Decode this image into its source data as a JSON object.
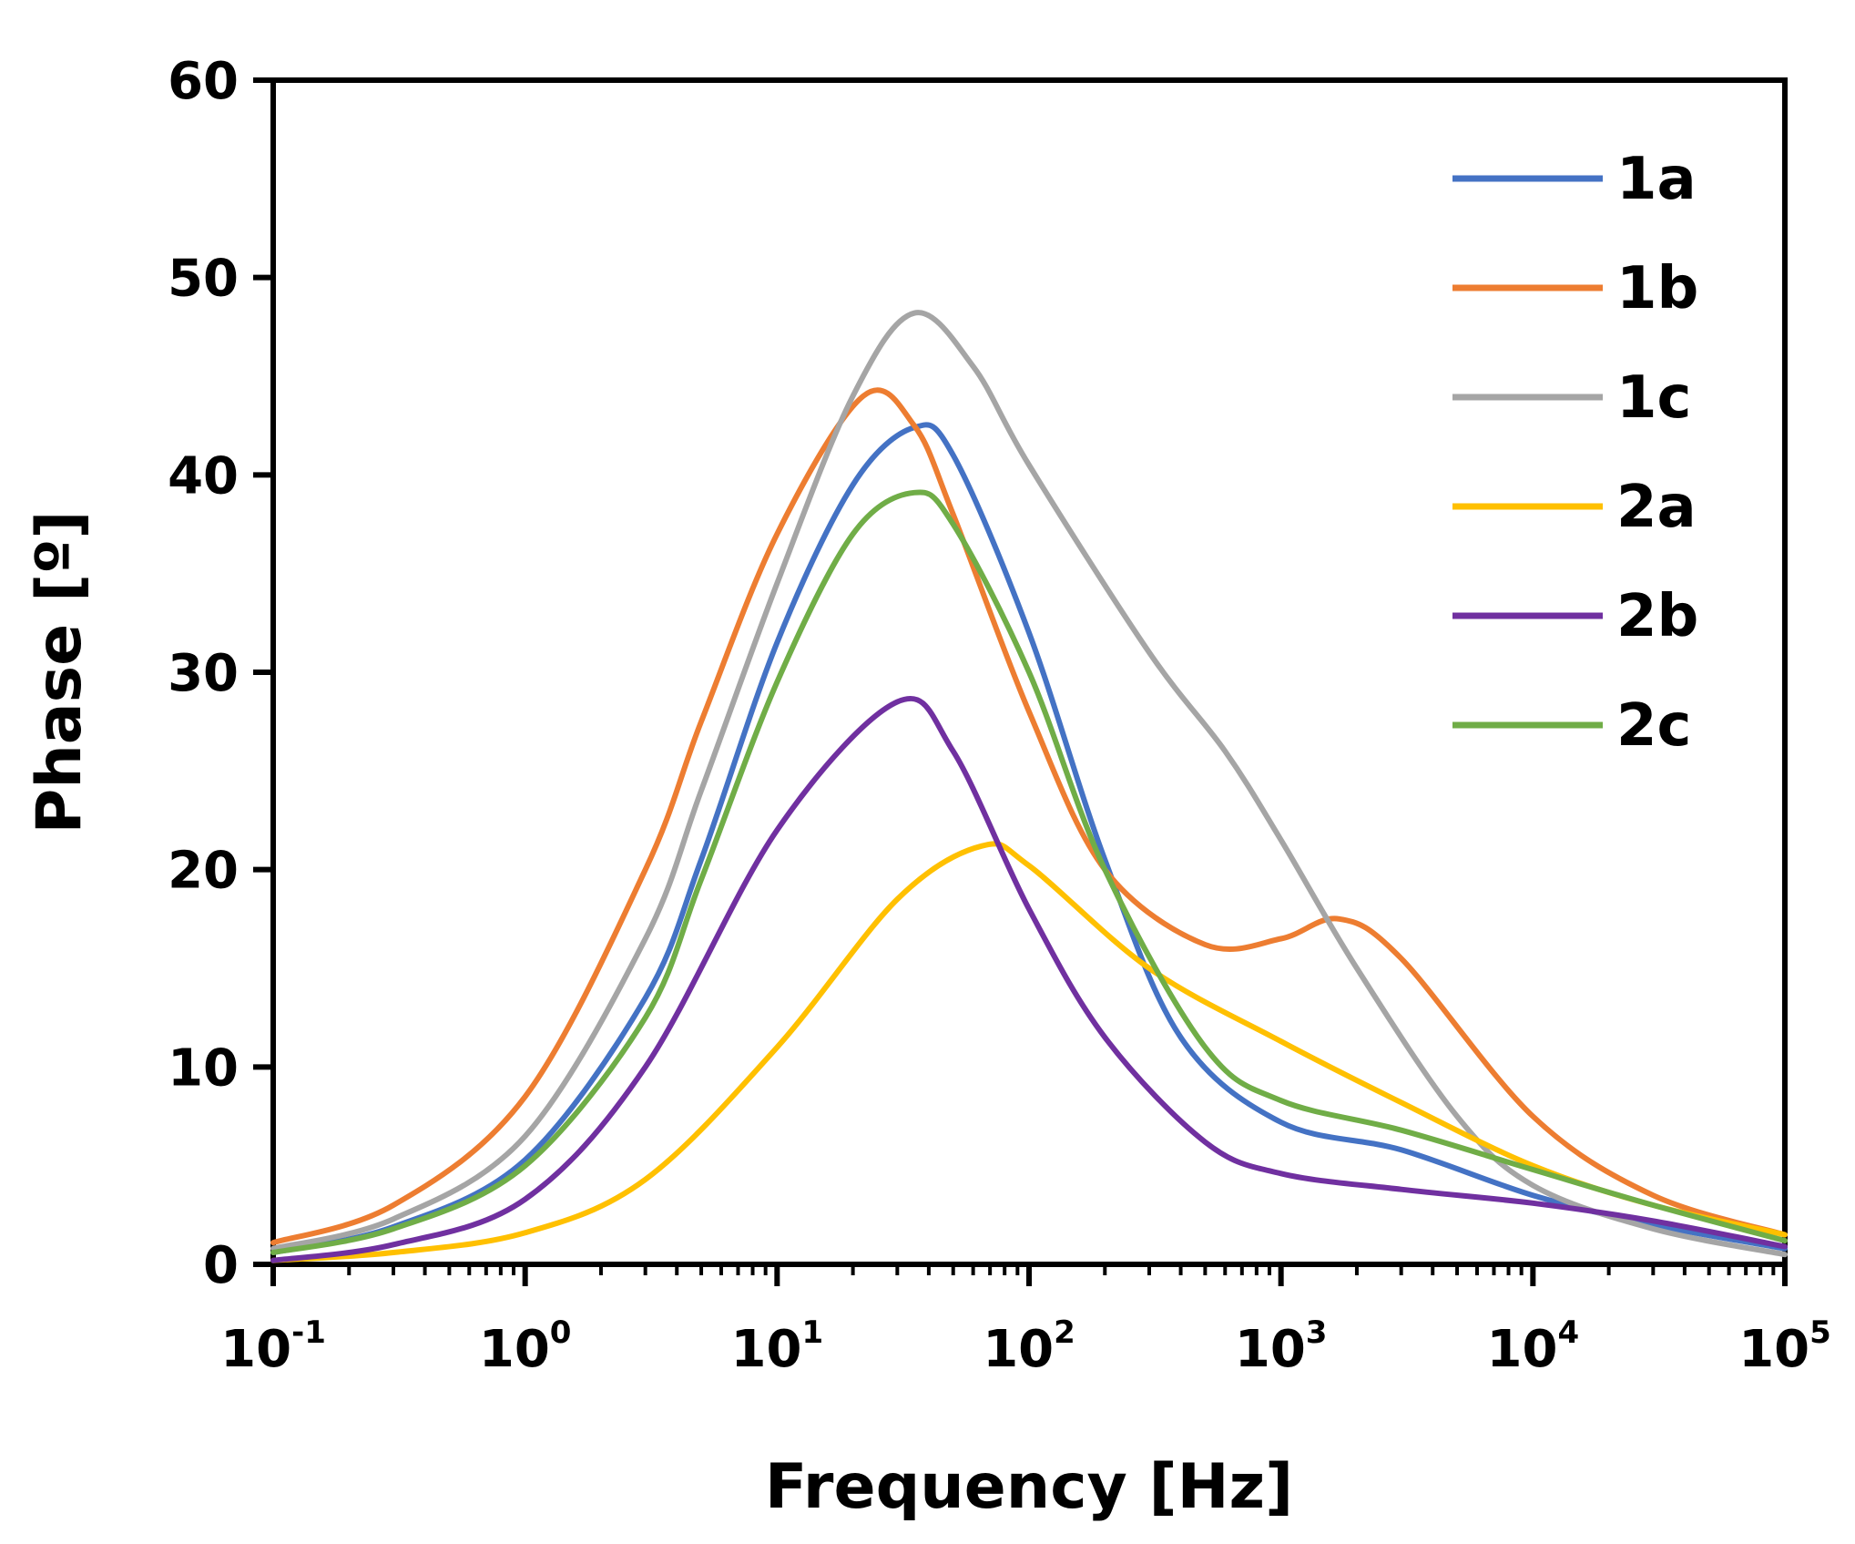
{
  "chart_data": {
    "type": "line",
    "title": "",
    "xlabel": "Frequency [Hz]",
    "ylabel": "Phase [º]",
    "xscale": "log",
    "xlim": [
      0.1,
      100000
    ],
    "ylim": [
      0,
      60
    ],
    "grid": false,
    "legend_position": "top-right",
    "x_ticks": [
      {
        "base": "10",
        "exp": "-1",
        "value": 0.1
      },
      {
        "base": "10",
        "exp": "0",
        "value": 1
      },
      {
        "base": "10",
        "exp": "1",
        "value": 10
      },
      {
        "base": "10",
        "exp": "2",
        "value": 100
      },
      {
        "base": "10",
        "exp": "3",
        "value": 1000
      },
      {
        "base": "10",
        "exp": "4",
        "value": 10000
      },
      {
        "base": "10",
        "exp": "5",
        "value": 100000
      }
    ],
    "y_ticks": [
      {
        "label": "0",
        "value": 0
      },
      {
        "label": "10",
        "value": 10
      },
      {
        "label": "20",
        "value": 20
      },
      {
        "label": "30",
        "value": 30
      },
      {
        "label": "40",
        "value": 40
      },
      {
        "label": "50",
        "value": 50
      },
      {
        "label": "60",
        "value": 60
      }
    ],
    "series": [
      {
        "name": "1a",
        "color": "#4472C4",
        "points": [
          [
            0.1,
            0.6
          ],
          [
            0.3,
            1.9
          ],
          [
            1,
            5.3
          ],
          [
            3,
            13.5
          ],
          [
            5,
            20.5
          ],
          [
            10,
            31.5
          ],
          [
            20,
            39.5
          ],
          [
            35,
            42.4
          ],
          [
            50,
            41
          ],
          [
            100,
            32
          ],
          [
            200,
            20.5
          ],
          [
            400,
            11.5
          ],
          [
            1000,
            7.2
          ],
          [
            3000,
            5.8
          ],
          [
            10000,
            3.5
          ],
          [
            30000,
            2
          ],
          [
            100000,
            0.8
          ]
        ]
      },
      {
        "name": "1b",
        "color": "#ED7D31",
        "points": [
          [
            0.1,
            1.1
          ],
          [
            0.3,
            3
          ],
          [
            1,
            8.5
          ],
          [
            3,
            20
          ],
          [
            5,
            27.5
          ],
          [
            10,
            37
          ],
          [
            22,
            44
          ],
          [
            35,
            42.5
          ],
          [
            50,
            38
          ],
          [
            100,
            28
          ],
          [
            200,
            20
          ],
          [
            500,
            16.2
          ],
          [
            1000,
            16.5
          ],
          [
            1700,
            17.5
          ],
          [
            3000,
            15.5
          ],
          [
            10000,
            7.5
          ],
          [
            30000,
            3.5
          ],
          [
            100000,
            1.5
          ]
        ]
      },
      {
        "name": "1c",
        "color": "#A5A5A5",
        "points": [
          [
            0.1,
            0.8
          ],
          [
            0.3,
            2.3
          ],
          [
            1,
            6.5
          ],
          [
            3,
            16.5
          ],
          [
            5,
            24
          ],
          [
            10,
            34.5
          ],
          [
            20,
            44
          ],
          [
            35,
            48.2
          ],
          [
            60,
            45.5
          ],
          [
            100,
            40.5
          ],
          [
            300,
            31
          ],
          [
            600,
            26
          ],
          [
            1000,
            21.5
          ],
          [
            2000,
            15
          ],
          [
            5000,
            7.5
          ],
          [
            10000,
            4
          ],
          [
            30000,
            1.8
          ],
          [
            100000,
            0.5
          ]
        ]
      },
      {
        "name": "2a",
        "color": "#FFC000",
        "points": [
          [
            0.1,
            0.2
          ],
          [
            0.3,
            0.6
          ],
          [
            1,
            1.6
          ],
          [
            3,
            4.3
          ],
          [
            10,
            11
          ],
          [
            30,
            18.5
          ],
          [
            65,
            21.2
          ],
          [
            100,
            20.2
          ],
          [
            300,
            15
          ],
          [
            1000,
            11.3
          ],
          [
            3000,
            8.2
          ],
          [
            10000,
            5
          ],
          [
            30000,
            3
          ],
          [
            100000,
            1.5
          ]
        ]
      },
      {
        "name": "2b",
        "color": "#7030A0",
        "points": [
          [
            0.1,
            0.2
          ],
          [
            0.3,
            1
          ],
          [
            1,
            3.3
          ],
          [
            3,
            10
          ],
          [
            10,
            22
          ],
          [
            30,
            28.5
          ],
          [
            50,
            26
          ],
          [
            100,
            18
          ],
          [
            200,
            11.5
          ],
          [
            500,
            6.2
          ],
          [
            1000,
            4.6
          ],
          [
            3000,
            3.8
          ],
          [
            10000,
            3.1
          ],
          [
            30000,
            2.2
          ],
          [
            100000,
            0.9
          ]
        ]
      },
      {
        "name": "2c",
        "color": "#70AD47",
        "points": [
          [
            0.1,
            0.6
          ],
          [
            0.3,
            1.8
          ],
          [
            1,
            5
          ],
          [
            3,
            12.5
          ],
          [
            5,
            19.5
          ],
          [
            10,
            29.5
          ],
          [
            20,
            37
          ],
          [
            35,
            39.1
          ],
          [
            50,
            37.5
          ],
          [
            100,
            30
          ],
          [
            200,
            20
          ],
          [
            500,
            11
          ],
          [
            1000,
            8.3
          ],
          [
            3000,
            6.8
          ],
          [
            10000,
            4.8
          ],
          [
            30000,
            3
          ],
          [
            100000,
            1.2
          ]
        ]
      }
    ]
  }
}
